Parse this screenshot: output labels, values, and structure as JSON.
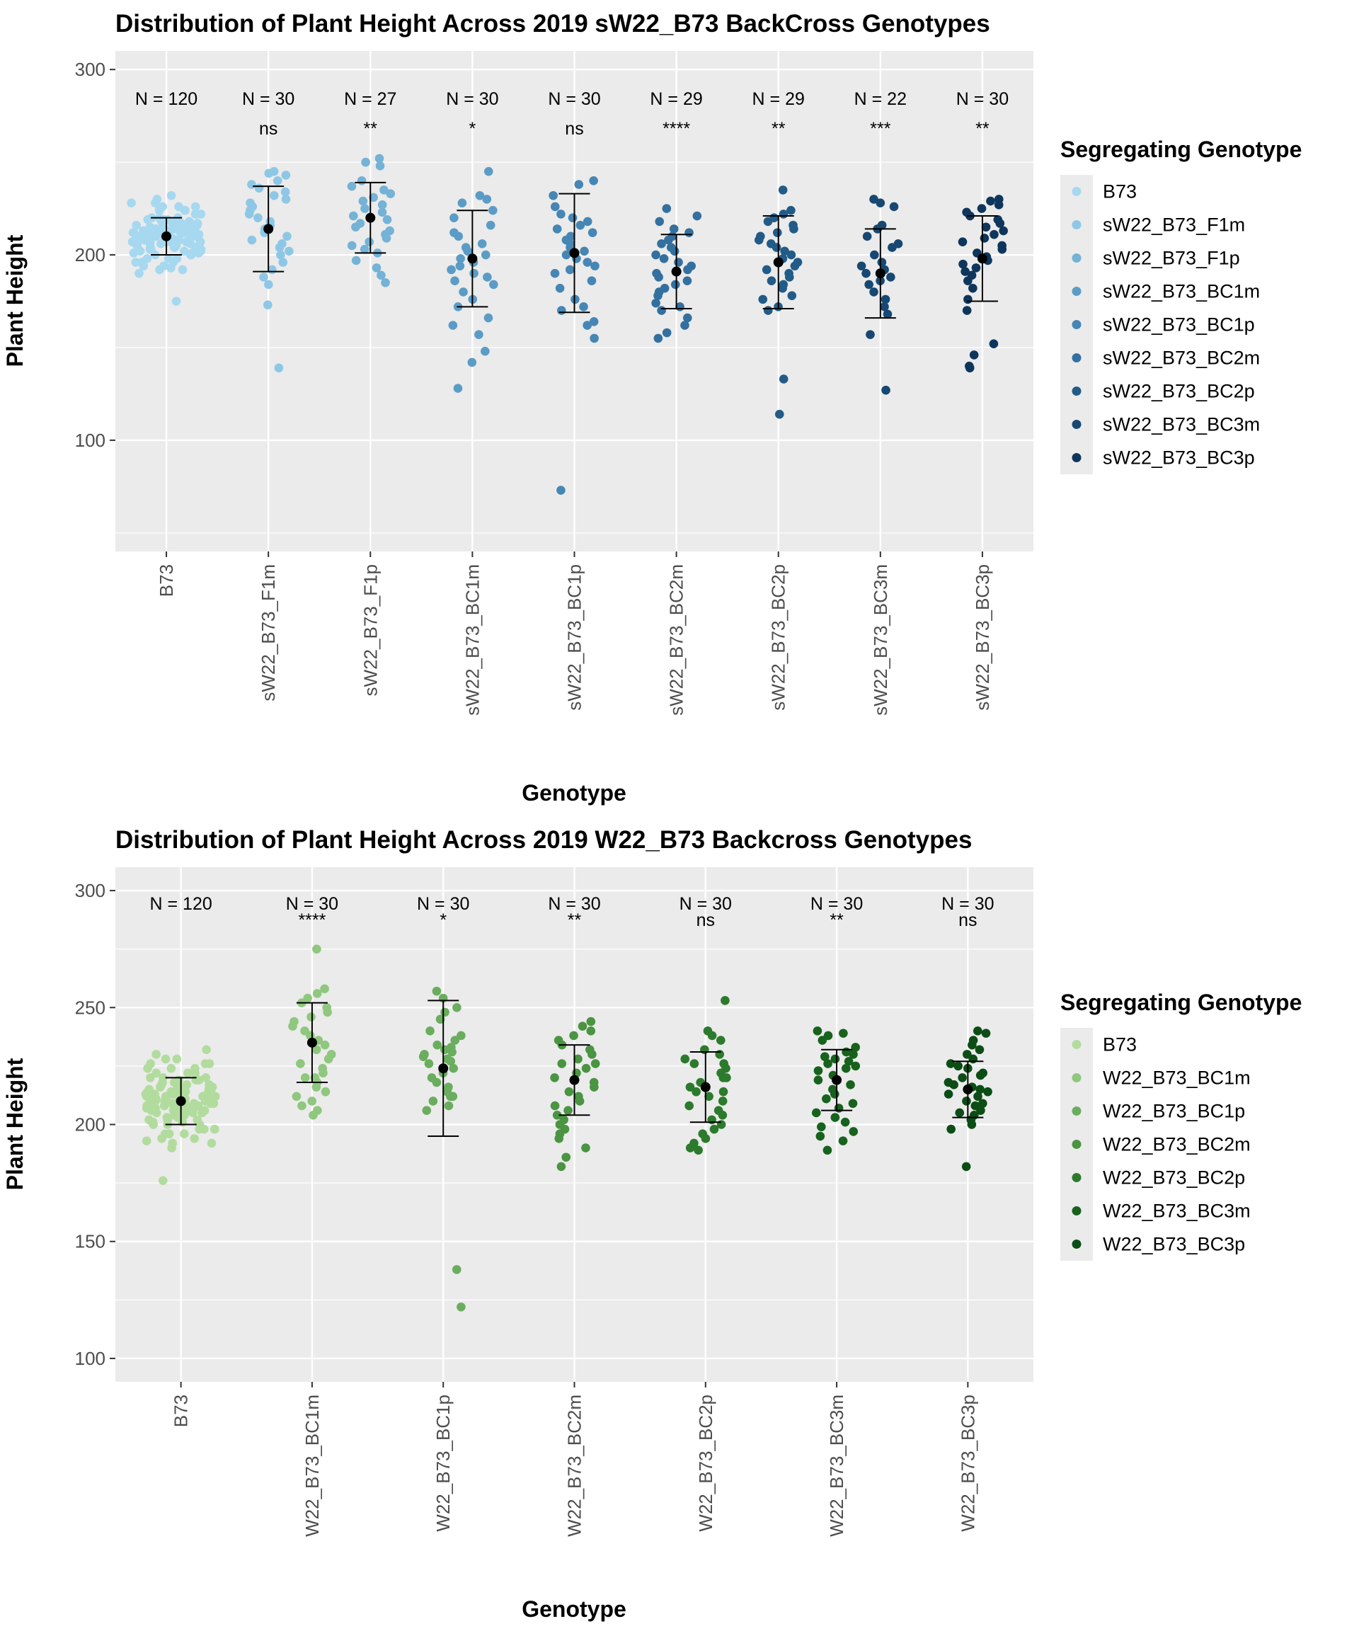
{
  "chart_data": [
    {
      "type": "scatter",
      "subtype": "jittered strip plot with mean ± sd error bars",
      "title": "Distribution of Plant Height Across 2019 sW22_B73 BackCross Genotypes",
      "xlabel": "Genotype",
      "ylabel": "Plant Height",
      "ylim": [
        40,
        310
      ],
      "yticks": [
        100,
        200,
        300
      ],
      "grid": true,
      "legend_title": "Segregating Genotype",
      "legend_position": "right",
      "categories": [
        "B73",
        "sW22_B73_F1m",
        "sW22_B73_F1p",
        "sW22_B73_BC1m",
        "sW22_B73_BC1p",
        "sW22_B73_BC2m",
        "sW22_B73_BC2p",
        "sW22_B73_BC3m",
        "sW22_B73_BC3p"
      ],
      "colors": [
        "#a6d8f0",
        "#8ec7e6",
        "#74b2d6",
        "#5b9cc6",
        "#4686b4",
        "#33709f",
        "#225b88",
        "#174872",
        "#0e365c"
      ],
      "n_labels": [
        "N = 120",
        "N = 30",
        "N = 27",
        "N = 30",
        "N = 30",
        "N = 29",
        "N = 29",
        "N = 22",
        "N = 30"
      ],
      "significance": [
        "",
        "ns",
        "**",
        "*",
        "ns",
        "****",
        "**",
        "***",
        "**"
      ],
      "mean": [
        210,
        214,
        220,
        198,
        201,
        191,
        196,
        190,
        198
      ],
      "sd": [
        10,
        23,
        19,
        26,
        32,
        20,
        25,
        24,
        23
      ],
      "points": [
        [
          210,
          212,
          208,
          215,
          205,
          218,
          202,
          211,
          209,
          213,
          207,
          216,
          204,
          220,
          200,
          214,
          206,
          219,
          203,
          217,
          201,
          210,
          212,
          208,
          222,
          198,
          224,
          196,
          226,
          194,
          228,
          193,
          230,
          192,
          232,
          190,
          175,
          211,
          209,
          213,
          207,
          215,
          205,
          210,
          212,
          208,
          214,
          206,
          218,
          202,
          211,
          209,
          213,
          207,
          216,
          204,
          220,
          200,
          214,
          206,
          219,
          203,
          217,
          201,
          210,
          212,
          208,
          222,
          198,
          224,
          196,
          226,
          194,
          228,
          192,
          211,
          209,
          213,
          207,
          215,
          205,
          210,
          212,
          208,
          214,
          206,
          218,
          202,
          211,
          209,
          213,
          207,
          216,
          204,
          220,
          200,
          214,
          206,
          219,
          203,
          217,
          201,
          210,
          212,
          208,
          222,
          198,
          224,
          196,
          226,
          211,
          209,
          213,
          207,
          215,
          205,
          210,
          212,
          208,
          214
        ],
        [
          245,
          244,
          243,
          240,
          238,
          236,
          234,
          232,
          230,
          228,
          226,
          224,
          222,
          220,
          218,
          216,
          214,
          212,
          210,
          208,
          206,
          204,
          202,
          200,
          196,
          192,
          188,
          184,
          173,
          139
        ],
        [
          252,
          250,
          248,
          240,
          237,
          235,
          233,
          231,
          229,
          227,
          225,
          223,
          221,
          219,
          217,
          215,
          213,
          211,
          209,
          207,
          205,
          203,
          201,
          197,
          193,
          189,
          185
        ],
        [
          245,
          232,
          230,
          228,
          224,
          220,
          216,
          212,
          210,
          206,
          204,
          202,
          200,
          198,
          196,
          194,
          192,
          190,
          188,
          186,
          184,
          180,
          176,
          172,
          166,
          162,
          157,
          148,
          142,
          128
        ],
        [
          240,
          238,
          232,
          226,
          222,
          220,
          218,
          216,
          214,
          212,
          210,
          208,
          206,
          204,
          202,
          200,
          198,
          196,
          194,
          192,
          190,
          186,
          182,
          176,
          172,
          170,
          164,
          162,
          155,
          73
        ],
        [
          225,
          221,
          218,
          214,
          212,
          210,
          208,
          206,
          204,
          202,
          200,
          198,
          196,
          194,
          192,
          190,
          188,
          186,
          184,
          182,
          180,
          178,
          174,
          172,
          170,
          166,
          162,
          158,
          155
        ],
        [
          235,
          224,
          222,
          220,
          218,
          216,
          214,
          212,
          210,
          208,
          206,
          204,
          202,
          200,
          198,
          196,
          194,
          192,
          190,
          188,
          186,
          184,
          182,
          178,
          176,
          172,
          170,
          133,
          114
        ],
        [
          230,
          228,
          226,
          216,
          214,
          210,
          206,
          204,
          200,
          196,
          194,
          192,
          190,
          188,
          186,
          184,
          180,
          176,
          172,
          168,
          157,
          127
        ],
        [
          230,
          229,
          227,
          225,
          223,
          221,
          219,
          217,
          215,
          213,
          211,
          209,
          207,
          205,
          203,
          201,
          199,
          197,
          195,
          193,
          191,
          189,
          186,
          182,
          176,
          170,
          152,
          146,
          140,
          139
        ]
      ]
    },
    {
      "type": "scatter",
      "subtype": "jittered strip plot with mean ± sd error bars",
      "title": "Distribution of Plant Height Across 2019 W22_B73 Backcross Genotypes",
      "xlabel": "Genotype",
      "ylabel": "Plant Height",
      "ylim": [
        90,
        310
      ],
      "yticks": [
        100,
        150,
        200,
        250,
        300
      ],
      "grid": true,
      "legend_title": "Segregating Genotype",
      "legend_position": "right",
      "categories": [
        "B73",
        "W22_B73_BC1m",
        "W22_B73_BC1p",
        "W22_B73_BC2m",
        "W22_B73_BC2p",
        "W22_B73_BC3m",
        "W22_B73_BC3p"
      ],
      "colors": [
        "#b2dc9e",
        "#8fc77e",
        "#6aad5e",
        "#4a9442",
        "#2c7a2c",
        "#17621d",
        "#0c4d16"
      ],
      "n_labels": [
        "N = 120",
        "N = 30",
        "N = 30",
        "N = 30",
        "N = 30",
        "N = 30",
        "N = 30"
      ],
      "significance": [
        "",
        "****",
        "*",
        "**",
        "ns",
        "**",
        "ns"
      ],
      "mean": [
        210,
        235,
        224,
        219,
        216,
        219,
        215
      ],
      "sd": [
        10,
        17,
        29,
        15,
        15,
        13,
        12
      ],
      "points": [
        [
          210,
          212,
          208,
          215,
          205,
          218,
          202,
          211,
          209,
          213,
          207,
          216,
          204,
          220,
          200,
          214,
          206,
          219,
          203,
          217,
          201,
          210,
          212,
          208,
          222,
          198,
          224,
          196,
          226,
          194,
          228,
          193,
          230,
          192,
          232,
          190,
          176,
          211,
          209,
          213,
          207,
          215,
          205,
          210,
          212,
          208,
          214,
          206,
          218,
          202,
          211,
          209,
          213,
          207,
          216,
          204,
          220,
          200,
          214,
          206,
          219,
          203,
          217,
          201,
          210,
          212,
          208,
          222,
          198,
          224,
          196,
          226,
          194,
          228,
          192,
          211,
          209,
          213,
          207,
          215,
          205,
          210,
          212,
          208,
          214,
          206,
          218,
          202,
          211,
          209,
          213,
          207,
          216,
          204,
          220,
          200,
          214,
          206,
          219,
          203,
          217,
          201,
          210,
          212,
          208,
          222,
          198,
          224,
          196,
          226,
          211,
          209,
          213,
          207,
          215,
          205,
          210,
          212,
          208,
          214
        ],
        [
          275,
          258,
          256,
          254,
          252,
          250,
          248,
          246,
          244,
          242,
          240,
          238,
          236,
          234,
          232,
          230,
          228,
          226,
          224,
          222,
          220,
          218,
          216,
          214,
          212,
          210,
          208,
          206,
          204,
          220
        ],
        [
          257,
          254,
          250,
          248,
          245,
          240,
          238,
          236,
          234,
          232,
          230,
          228,
          226,
          224,
          222,
          220,
          218,
          216,
          214,
          212,
          210,
          208,
          206,
          233,
          231,
          229,
          227,
          212,
          138,
          122
        ],
        [
          244,
          242,
          240,
          238,
          236,
          234,
          232,
          230,
          228,
          226,
          224,
          222,
          220,
          218,
          216,
          214,
          212,
          210,
          208,
          206,
          204,
          202,
          200,
          198,
          196,
          194,
          190,
          186,
          182,
          226
        ],
        [
          253,
          240,
          238,
          236,
          232,
          230,
          228,
          226,
          224,
          222,
          220,
          218,
          216,
          214,
          212,
          210,
          208,
          206,
          204,
          202,
          200,
          198,
          196,
          194,
          192,
          190,
          189,
          226,
          220,
          214
        ],
        [
          240,
          239,
          238,
          236,
          233,
          231,
          229,
          227,
          225,
          223,
          221,
          219,
          217,
          215,
          213,
          211,
          209,
          207,
          205,
          203,
          201,
          199,
          197,
          195,
          193,
          189,
          230,
          228,
          226,
          224
        ],
        [
          240,
          239,
          236,
          234,
          232,
          230,
          228,
          226,
          224,
          222,
          220,
          218,
          216,
          214,
          212,
          210,
          208,
          206,
          204,
          202,
          200,
          198,
          182,
          225,
          221,
          217,
          213,
          209,
          205,
          215
        ]
      ]
    }
  ]
}
